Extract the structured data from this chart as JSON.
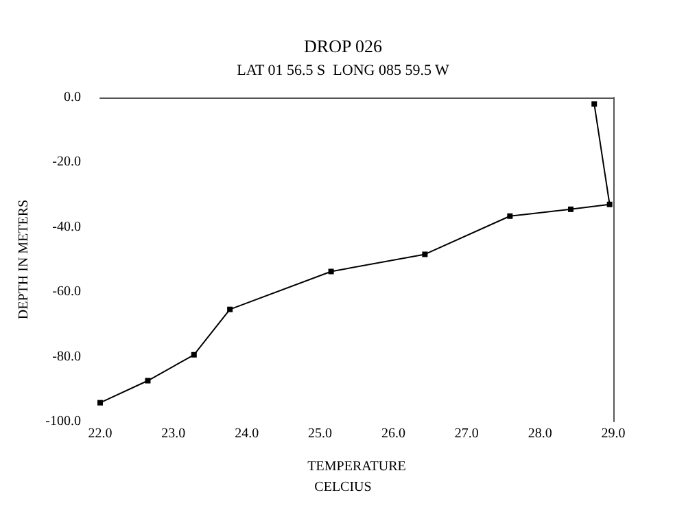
{
  "chart_data": {
    "type": "line",
    "title": "DROP 026",
    "subtitle": "LAT 01 56.5 S  LONG 085 59.5 W",
    "xlabel": "TEMPERATURE",
    "ylabel": "DEPTH IN METERS",
    "annotations": [
      "CELCIUS"
    ],
    "series": [
      {
        "color": "#000000",
        "x": [
          28.74,
          28.95,
          28.42,
          27.59,
          26.43,
          25.15,
          23.77,
          23.28,
          22.65,
          22.0
        ],
        "values": [
          -2,
          -33,
          -34.5,
          -36.6,
          -48.4,
          -53.7,
          -65.4,
          -79.4,
          -87.4,
          -94.2
        ]
      }
    ],
    "xlim": [
      22,
      29
    ],
    "xticks": [
      {
        "value": 22,
        "label": "22.0"
      },
      {
        "value": 23,
        "label": "23.0"
      },
      {
        "value": 24,
        "label": "24.0"
      },
      {
        "value": 25,
        "label": "25.0"
      },
      {
        "value": 26,
        "label": "26.0"
      },
      {
        "value": 27,
        "label": "27.0"
      },
      {
        "value": 28,
        "label": "28.0"
      },
      {
        "value": 29,
        "label": "29.0"
      }
    ],
    "ylim": [
      -100,
      0
    ],
    "yticks": [
      {
        "value": -100,
        "label": "-100.0"
      },
      {
        "value": -80,
        "label": "-80.0"
      },
      {
        "value": -60,
        "label": "-60.0"
      },
      {
        "value": -40,
        "label": "-40.0"
      },
      {
        "value": -20,
        "label": "-20.0"
      },
      {
        "value": 0,
        "label": "0.0"
      }
    ],
    "grid": false,
    "marker": "square",
    "line_style": "solid"
  }
}
